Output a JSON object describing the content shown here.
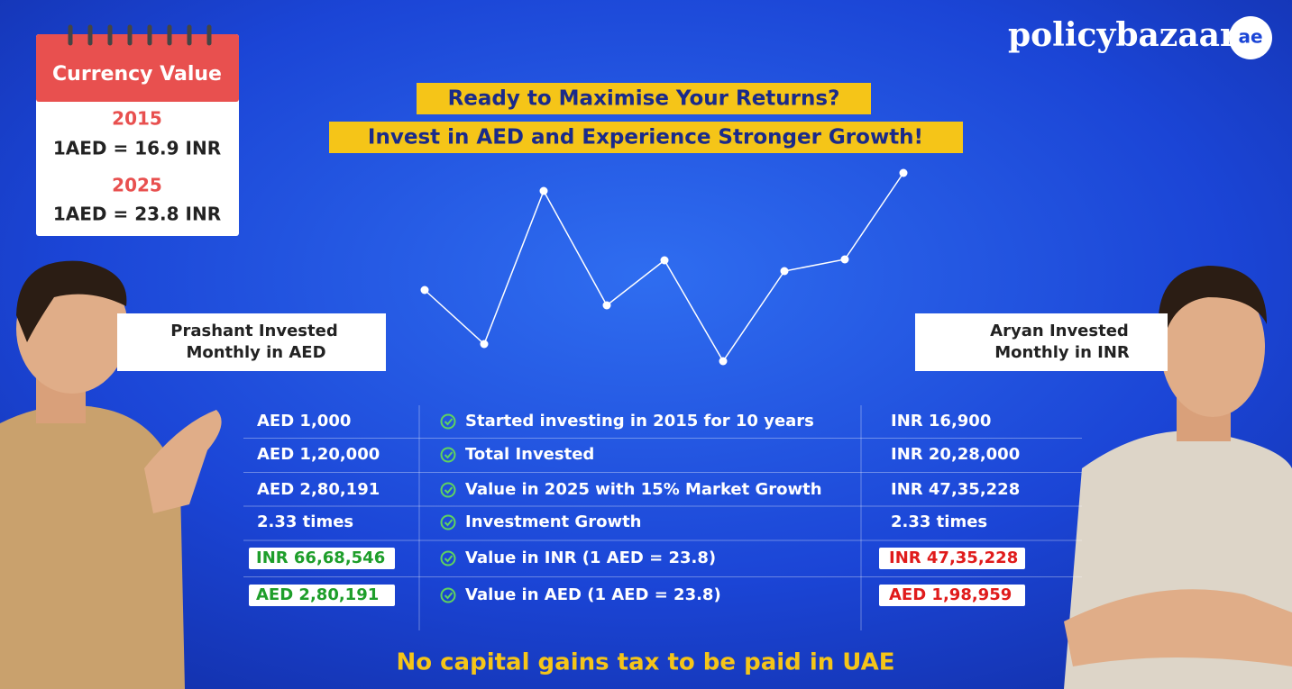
{
  "logo": {
    "brand": "policybazaar",
    "badge": "ae"
  },
  "calendar": {
    "title": "Currency Value",
    "entries": [
      {
        "year": "2015",
        "rate": "1AED = 16.9 INR"
      },
      {
        "year": "2025",
        "rate": "1AED = 23.8 INR"
      }
    ]
  },
  "headline": [
    "Ready to Maximise Your Returns?",
    "Invest in AED and Experience Stronger Growth!"
  ],
  "left_label": [
    "Prashant Invested",
    "Monthly in AED"
  ],
  "right_label": [
    "Aryan Invested",
    "Monthly in INR"
  ],
  "table": {
    "rows": [
      [
        "AED 1,000",
        "Started investing in 2015 for 10 years",
        "INR 16,900"
      ],
      [
        "AED 1,20,000",
        "Total Invested",
        "INR 20,28,000"
      ],
      [
        "AED 2,80,191",
        "Value in 2025 with 15% Market Growth",
        "INR 47,35,228"
      ],
      [
        "2.33 times",
        "Investment Growth",
        "2.33 times"
      ],
      [
        "INR 66,68,546",
        "Value in INR (1 AED = 23.8)",
        "INR 47,35,228"
      ],
      [
        "AED 2,80,191",
        "Value in AED (1 AED = 23.8)",
        "AED 1,98,959"
      ]
    ]
  },
  "footer": "No capital gains tax to be paid in UAE"
}
